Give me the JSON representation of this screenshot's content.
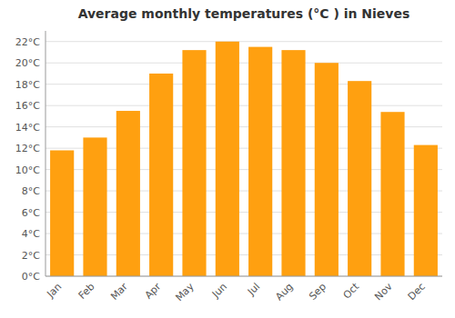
{
  "chart_data": {
    "type": "bar",
    "title": "Average monthly temperatures (°C ) in Nieves",
    "categories": [
      "Jan",
      "Feb",
      "Mar",
      "Apr",
      "May",
      "Jun",
      "Jul",
      "Aug",
      "Sep",
      "Oct",
      "Nov",
      "Dec"
    ],
    "values": [
      11.8,
      13.0,
      15.5,
      19.0,
      21.2,
      22.0,
      21.5,
      21.2,
      20.0,
      18.3,
      15.4,
      12.3
    ],
    "color": "#FFA010",
    "ylim": [
      0,
      23
    ],
    "yticks": [
      {
        "value": 0,
        "label": "0°C"
      },
      {
        "value": 2,
        "label": "2°C"
      },
      {
        "value": 4,
        "label": "4°C"
      },
      {
        "value": 6,
        "label": "6°C"
      },
      {
        "value": 8,
        "label": "8°C"
      },
      {
        "value": 10,
        "label": "10°C"
      },
      {
        "value": 12,
        "label": "12°C"
      },
      {
        "value": 14,
        "label": "14°C"
      },
      {
        "value": 16,
        "label": "16°C"
      },
      {
        "value": 18,
        "label": "18°C"
      },
      {
        "value": 20,
        "label": "20°C"
      },
      {
        "value": 22,
        "label": "22°C"
      }
    ],
    "grid": true
  }
}
